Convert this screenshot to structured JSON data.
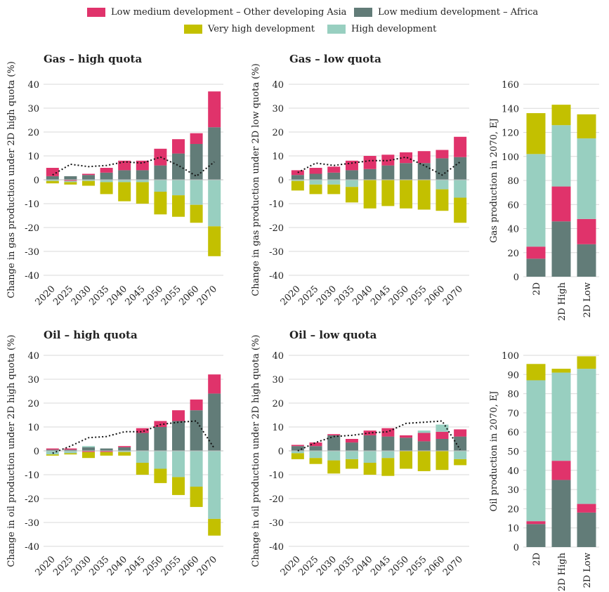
{
  "legend": [
    {
      "key": "asia",
      "label": "Low medium development – Other developing Asia",
      "color": "#e0336b"
    },
    {
      "key": "africa",
      "label": "Low medium development – Africa",
      "color": "#627c78"
    },
    {
      "key": "vhigh",
      "label": "Very high development",
      "color": "#c3c000"
    },
    {
      "key": "high",
      "label": "High development",
      "color": "#98cfc0"
    }
  ],
  "colors": {
    "asia": "#e0336b",
    "africa": "#627c78",
    "vhigh": "#c3c000",
    "high": "#98cfc0"
  },
  "titles": {
    "gas_high": "Gas – high quota",
    "gas_low": "Gas – low quota",
    "oil_high": "Oil – high quota",
    "oil_low": "Oil – low quota"
  },
  "chart_data": [
    {
      "type": "bar",
      "id": "gas_high",
      "title": "Gas – high quota",
      "ylabel": "Change in gas production under 2D high quota (%)",
      "ylim": [
        -40,
        40
      ],
      "yticks": [
        -40,
        -30,
        -20,
        -10,
        0,
        10,
        20,
        30,
        40
      ],
      "categories": [
        "2020",
        "2025",
        "2030",
        "2035",
        "2040",
        "2045",
        "2050",
        "2055",
        "2060",
        "2070"
      ],
      "series": [
        {
          "name": "Low medium development – Africa",
          "key": "africa",
          "values": [
            1.5,
            1.5,
            2,
            3,
            4,
            4,
            6,
            11,
            15,
            22
          ]
        },
        {
          "name": "Low medium development – Other developing Asia",
          "key": "asia",
          "values": [
            3.5,
            -0.5,
            0.5,
            2,
            4,
            4,
            7,
            6,
            4.5,
            15
          ]
        },
        {
          "name": "High development",
          "key": "high",
          "values": [
            -0.5,
            -0.5,
            -0.5,
            -1,
            -1,
            -1,
            -5,
            -6.5,
            -10.5,
            -19.5
          ]
        },
        {
          "name": "Very high development",
          "key": "vhigh",
          "values": [
            -1,
            -1,
            -2,
            -5,
            -8,
            -9,
            -9.5,
            -9,
            -7.5,
            -12.5
          ]
        }
      ],
      "line": [
        2,
        6.5,
        5.5,
        6,
        7.5,
        7,
        9.5,
        6,
        1.5,
        7.5
      ]
    },
    {
      "type": "bar",
      "id": "gas_low",
      "title": "Gas – low quota",
      "ylabel": "Change in gas production under 2D low quota (%)",
      "ylim": [
        -40,
        40
      ],
      "yticks": [
        -40,
        -30,
        -20,
        -10,
        0,
        10,
        20,
        30,
        40
      ],
      "categories": [
        "2020",
        "2025",
        "2030",
        "2035",
        "2040",
        "2045",
        "2050",
        "2055",
        "2060",
        "2070"
      ],
      "series": [
        {
          "name": "Low medium development – Africa",
          "key": "africa",
          "values": [
            2,
            2.5,
            3,
            4,
            4.5,
            6,
            7,
            7,
            9,
            9.5
          ]
        },
        {
          "name": "Low medium development – Other developing Asia",
          "key": "asia",
          "values": [
            2,
            2.5,
            2.5,
            4,
            5.5,
            4.5,
            4.5,
            5,
            3.5,
            8.5
          ]
        },
        {
          "name": "High development",
          "key": "high",
          "values": [
            -0.5,
            -2,
            -2,
            -3,
            0,
            0,
            0,
            0,
            -4,
            -7.5
          ]
        },
        {
          "name": "Very high development",
          "key": "vhigh",
          "values": [
            -4,
            -4,
            -4,
            -6.5,
            -12,
            -11,
            -12,
            -12.5,
            -9,
            -10.5
          ]
        }
      ],
      "line": [
        3,
        7,
        6,
        7,
        8,
        8,
        9.5,
        6,
        2,
        7.5
      ]
    },
    {
      "type": "bar",
      "id": "gas_2070",
      "ylabel": "Gas production in 2070, EJ",
      "ylim": [
        0,
        160
      ],
      "yticks": [
        0,
        20,
        40,
        60,
        80,
        100,
        120,
        140,
        160
      ],
      "categories": [
        "2D",
        "2D High",
        "2D Low"
      ],
      "series": [
        {
          "name": "Low medium development – Africa",
          "key": "africa",
          "values": [
            15,
            46,
            27
          ]
        },
        {
          "name": "Low medium development – Other developing Asia",
          "key": "asia",
          "values": [
            10,
            29,
            21
          ]
        },
        {
          "name": "High development",
          "key": "high",
          "values": [
            77,
            51,
            67
          ]
        },
        {
          "name": "Very high development",
          "key": "vhigh",
          "values": [
            34,
            17,
            20
          ]
        }
      ]
    },
    {
      "type": "bar",
      "id": "oil_high",
      "title": "Oil – high quota",
      "ylabel": "Change in oil production under 2D high quota (%)",
      "ylim": [
        -40,
        40
      ],
      "yticks": [
        -40,
        -30,
        -20,
        -10,
        0,
        10,
        20,
        30,
        40
      ],
      "categories": [
        "2020",
        "2025",
        "2030",
        "2035",
        "2040",
        "2045",
        "2050",
        "2055",
        "2060",
        "2070"
      ],
      "series": [
        {
          "name": "Low medium development – Africa",
          "key": "africa",
          "values": [
            0.5,
            0.5,
            1.5,
            1,
            1.5,
            7.5,
            10,
            12.5,
            17,
            24
          ]
        },
        {
          "name": "Low medium development – Other developing Asia",
          "key": "asia",
          "values": [
            0.5,
            0.5,
            -0.5,
            -0.5,
            0.5,
            2,
            2.5,
            4.5,
            4.5,
            8
          ]
        },
        {
          "name": "High development",
          "key": "high",
          "values": [
            -1.5,
            -1,
            0.5,
            0,
            -0.5,
            -5,
            -7.5,
            -11,
            -15,
            -28.5
          ]
        },
        {
          "name": "Very high development",
          "key": "vhigh",
          "values": [
            -0.5,
            -0.5,
            -2.5,
            -1.5,
            -1.5,
            -5,
            -6,
            -7.5,
            -8.5,
            -7
          ]
        }
      ],
      "line": [
        -1,
        2,
        5.5,
        6,
        8,
        8,
        11,
        12,
        12.5,
        1
      ]
    },
    {
      "type": "bar",
      "id": "oil_low",
      "title": "Oil – low quota",
      "ylabel": "Change in oil production under 2D high quota (%)",
      "ylim": [
        -40,
        40
      ],
      "yticks": [
        -40,
        -30,
        -20,
        -10,
        0,
        10,
        20,
        30,
        40
      ],
      "categories": [
        "2020",
        "2025",
        "2030",
        "2035",
        "2040",
        "2045",
        "2050",
        "2055",
        "2060",
        "2070"
      ],
      "series": [
        {
          "name": "Low medium development – Africa",
          "key": "africa",
          "values": [
            2,
            2,
            6.5,
            3.5,
            6.5,
            6,
            5.5,
            4,
            5,
            6
          ]
        },
        {
          "name": "Low medium development – Other developing Asia",
          "key": "asia",
          "values": [
            0.5,
            1.5,
            0.5,
            1.5,
            2,
            3.5,
            1,
            3.5,
            3,
            3
          ]
        },
        {
          "name": "High development",
          "key": "high",
          "values": [
            -1,
            -3,
            -4,
            -3.5,
            -5,
            -3,
            0,
            1,
            3,
            -3.5
          ]
        },
        {
          "name": "Very high development",
          "key": "vhigh",
          "values": [
            -2.5,
            -2.5,
            -5.5,
            -4,
            -5,
            -7.5,
            -7.5,
            -8.5,
            -8,
            -2.5
          ]
        }
      ],
      "line": [
        0,
        3.5,
        6,
        6.5,
        7.5,
        8,
        11.5,
        12,
        12.5,
        0.5
      ]
    },
    {
      "type": "bar",
      "id": "oil_2070",
      "ylabel": "Oil production in 2070, EJ",
      "ylim": [
        0,
        100
      ],
      "yticks": [
        0,
        10,
        20,
        30,
        40,
        50,
        60,
        70,
        80,
        90,
        100
      ],
      "categories": [
        "2D",
        "2D High",
        "2D Low"
      ],
      "series": [
        {
          "name": "Low medium development – Africa",
          "key": "africa",
          "values": [
            12,
            35,
            18
          ]
        },
        {
          "name": "Low medium development – Other developing Asia",
          "key": "asia",
          "values": [
            1.5,
            10,
            4.5
          ]
        },
        {
          "name": "High development",
          "key": "high",
          "values": [
            73.5,
            46,
            70.5
          ]
        },
        {
          "name": "Very high development",
          "key": "vhigh",
          "values": [
            8.5,
            2,
            6.5
          ]
        }
      ]
    }
  ]
}
